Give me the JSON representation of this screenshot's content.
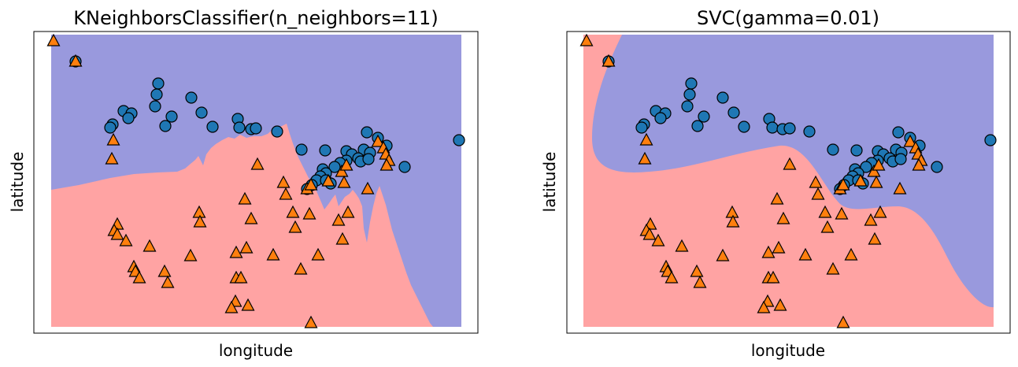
{
  "chart_data": [
    {
      "type": "scatter",
      "title": "KNeighborsClassifier(n_neighbors=11)",
      "xlabel": "longitude",
      "ylabel": "latitude",
      "ticks": "none",
      "background_regions": [
        {
          "class": 0,
          "color": "#9999dd"
        },
        {
          "class": 1,
          "color": "#ffa3a3"
        }
      ],
      "series": [
        {
          "marker": "circle",
          "color": "#1f77b4",
          "points": [
            [
              96,
              78
            ],
            [
              201,
              106
            ],
            [
              199,
              120
            ],
            [
              243,
              124
            ],
            [
              197,
              135
            ],
            [
              157,
              141
            ],
            [
              167,
              144
            ],
            [
              256,
              143
            ],
            [
              163,
              150
            ],
            [
              218,
              148
            ],
            [
              143,
              158
            ],
            [
              140,
              162
            ],
            [
              210,
              160
            ],
            [
              270,
              161
            ],
            [
              302,
              151
            ],
            [
              304,
              162
            ],
            [
              319,
              164
            ],
            [
              325,
              163
            ],
            [
              352,
              167
            ],
            [
              383,
              190
            ],
            [
              413,
              191
            ],
            [
              440,
              192
            ],
            [
              466,
              168
            ],
            [
              480,
              175
            ],
            [
              491,
              185
            ],
            [
              462,
              190
            ],
            [
              470,
              194
            ],
            [
              447,
              196
            ],
            [
              455,
              201
            ],
            [
              440,
              204
            ],
            [
              432,
              207
            ],
            [
              425,
              212
            ],
            [
              410,
              215
            ],
            [
              414,
              220
            ],
            [
              407,
              224
            ],
            [
              402,
              229
            ],
            [
              396,
              235
            ],
            [
              390,
              240
            ],
            [
              414,
              229
            ],
            [
              420,
              233
            ],
            [
              458,
              205
            ],
            [
              468,
              202
            ],
            [
              514,
              212
            ],
            [
              583,
              178
            ]
          ]
        },
        {
          "marker": "triangle",
          "color": "#ff7f0e",
          "points": [
            [
              68,
              52
            ],
            [
              96,
              78
            ],
            [
              144,
              178
            ],
            [
              142,
              202
            ],
            [
              327,
              209
            ],
            [
              360,
              232
            ],
            [
              363,
              247
            ],
            [
              390,
              240
            ],
            [
              395,
              235
            ],
            [
              417,
              230
            ],
            [
              434,
              218
            ],
            [
              440,
              210
            ],
            [
              480,
              180
            ],
            [
              487,
              188
            ],
            [
              490,
              196
            ],
            [
              494,
              204
            ],
            [
              491,
              210
            ],
            [
              437,
              232
            ],
            [
              467,
              240
            ],
            [
              311,
              253
            ],
            [
              253,
              270
            ],
            [
              254,
              282
            ],
            [
              319,
              278
            ],
            [
              372,
              270
            ],
            [
              393,
              272
            ],
            [
              375,
              289
            ],
            [
              442,
              270
            ],
            [
              430,
              280
            ],
            [
              149,
              285
            ],
            [
              145,
              293
            ],
            [
              149,
              298
            ],
            [
              160,
              306
            ],
            [
              190,
              313
            ],
            [
              242,
              325
            ],
            [
              300,
              321
            ],
            [
              313,
              315
            ],
            [
              347,
              324
            ],
            [
              404,
              324
            ],
            [
              435,
              304
            ],
            [
              170,
              339
            ],
            [
              172,
              345
            ],
            [
              177,
              353
            ],
            [
              209,
              345
            ],
            [
              213,
              359
            ],
            [
              382,
              342
            ],
            [
              300,
              353
            ],
            [
              306,
              353
            ],
            [
              299,
              383
            ],
            [
              294,
              391
            ],
            [
              315,
              388
            ],
            [
              395,
              410
            ]
          ]
        }
      ]
    },
    {
      "type": "scatter",
      "title": "SVC(gamma=0.01)",
      "xlabel": "longitude",
      "ylabel": "latitude",
      "ticks": "none",
      "background_regions": [
        {
          "class": 0,
          "color": "#9999dd"
        },
        {
          "class": 1,
          "color": "#ffa3a3"
        }
      ],
      "series": [
        {
          "marker": "circle",
          "color": "#1f77b4",
          "points": [
            [
              773,
              78
            ],
            [
              878,
              106
            ],
            [
              876,
              120
            ],
            [
              918,
              124
            ],
            [
              873,
              135
            ],
            [
              833,
              141
            ],
            [
              845,
              144
            ],
            [
              932,
              143
            ],
            [
              839,
              150
            ],
            [
              894,
              148
            ],
            [
              818,
              158
            ],
            [
              815,
              162
            ],
            [
              886,
              160
            ],
            [
              945,
              161
            ],
            [
              977,
              151
            ],
            [
              981,
              162
            ],
            [
              994,
              164
            ],
            [
              1003,
              163
            ],
            [
              1028,
              167
            ],
            [
              1058,
              190
            ],
            [
              1088,
              191
            ],
            [
              1115,
              192
            ],
            [
              1141,
              168
            ],
            [
              1156,
              175
            ],
            [
              1168,
              185
            ],
            [
              1138,
              190
            ],
            [
              1145,
              194
            ],
            [
              1122,
              196
            ],
            [
              1130,
              201
            ],
            [
              1115,
              204
            ],
            [
              1107,
              207
            ],
            [
              1100,
              212
            ],
            [
              1086,
              215
            ],
            [
              1090,
              220
            ],
            [
              1083,
              224
            ],
            [
              1078,
              229
            ],
            [
              1072,
              235
            ],
            [
              1067,
              240
            ],
            [
              1090,
              229
            ],
            [
              1096,
              233
            ],
            [
              1134,
              205
            ],
            [
              1144,
              202
            ],
            [
              1190,
              212
            ],
            [
              1258,
              178
            ]
          ]
        },
        {
          "marker": "triangle",
          "color": "#ff7f0e",
          "points": [
            [
              745,
              52
            ],
            [
              773,
              78
            ],
            [
              821,
              178
            ],
            [
              819,
              202
            ],
            [
              1003,
              209
            ],
            [
              1036,
              232
            ],
            [
              1039,
              247
            ],
            [
              1067,
              240
            ],
            [
              1071,
              235
            ],
            [
              1093,
              230
            ],
            [
              1110,
              218
            ],
            [
              1116,
              210
            ],
            [
              1156,
              180
            ],
            [
              1163,
              188
            ],
            [
              1166,
              196
            ],
            [
              1170,
              204
            ],
            [
              1167,
              210
            ],
            [
              1113,
              232
            ],
            [
              1143,
              240
            ],
            [
              987,
              253
            ],
            [
              930,
              270
            ],
            [
              931,
              282
            ],
            [
              995,
              278
            ],
            [
              1048,
              270
            ],
            [
              1069,
              272
            ],
            [
              1051,
              289
            ],
            [
              1118,
              270
            ],
            [
              1106,
              280
            ],
            [
              826,
              285
            ],
            [
              821,
              293
            ],
            [
              825,
              298
            ],
            [
              836,
              306
            ],
            [
              866,
              313
            ],
            [
              918,
              325
            ],
            [
              976,
              321
            ],
            [
              989,
              315
            ],
            [
              1023,
              324
            ],
            [
              1081,
              324
            ],
            [
              1111,
              304
            ],
            [
              846,
              339
            ],
            [
              848,
              345
            ],
            [
              853,
              353
            ],
            [
              885,
              345
            ],
            [
              889,
              359
            ],
            [
              1058,
              342
            ],
            [
              976,
              353
            ],
            [
              982,
              353
            ],
            [
              975,
              383
            ],
            [
              970,
              391
            ],
            [
              991,
              388
            ],
            [
              1071,
              410
            ]
          ]
        }
      ]
    }
  ]
}
